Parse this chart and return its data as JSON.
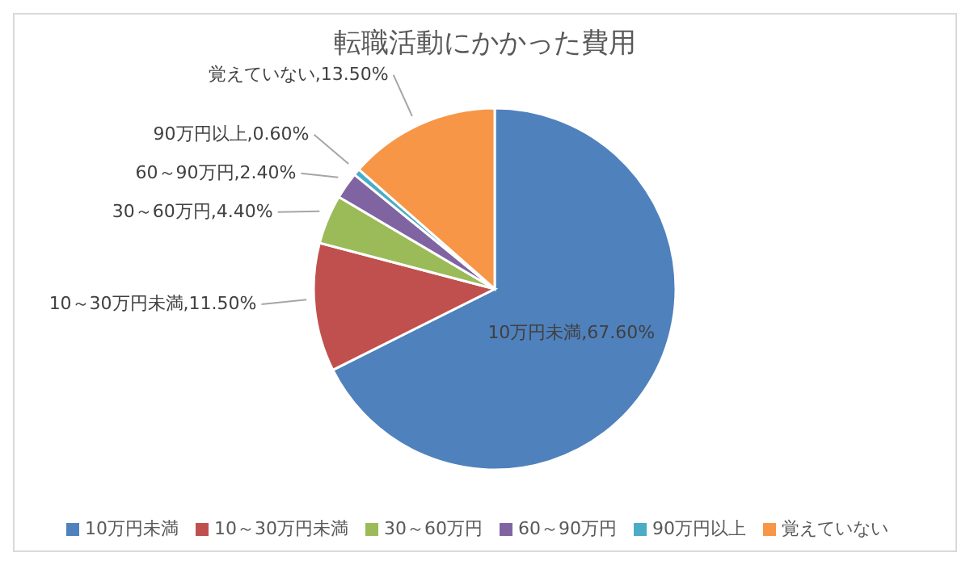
{
  "chart_data": {
    "type": "pie",
    "title": "転職活動にかかった費用",
    "categories": [
      "10万円未満",
      "10～30万円未満",
      "30～60万円",
      "60～90万円",
      "90万円以上",
      "覚えていない"
    ],
    "values": [
      67.6,
      11.5,
      4.4,
      2.4,
      0.6,
      13.5
    ],
    "colors": [
      "#4f81bd",
      "#c0504d",
      "#9bbb59",
      "#8064a2",
      "#4bacc6",
      "#f79646"
    ],
    "value_labels": [
      "10万円未満,67.60%",
      "10～30万円未満,11.50%",
      "30～60万円,4.40%",
      "60～90万円,2.40%",
      "90万円以上,0.60%",
      "覚えていない,13.50%"
    ],
    "legend": "bottom"
  }
}
